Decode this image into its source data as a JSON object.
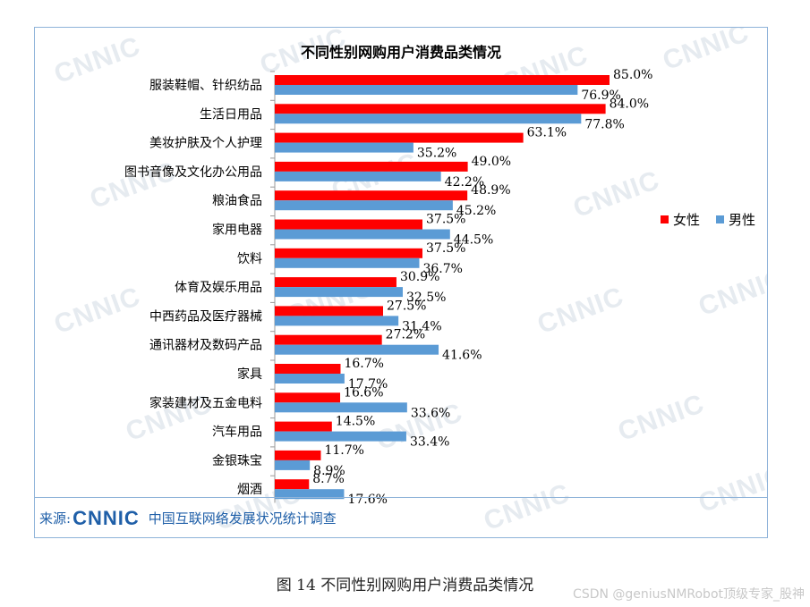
{
  "chart_data": {
    "type": "bar",
    "orientation": "horizontal",
    "title": "不同性别网购用户消费品类情况",
    "categories": [
      "服装鞋帽、针织纺品",
      "生活日用品",
      "美妆护肤及个人护理",
      "图书音像及文化办公用品",
      "粮油食品",
      "家用电器",
      "饮料",
      "体育及娱乐用品",
      "中西药品及医疗器械",
      "通讯器材及数码产品",
      "家具",
      "家装建材及五金电料",
      "汽车用品",
      "金银珠宝",
      "烟酒"
    ],
    "series": [
      {
        "name": "女性",
        "color": "#ff0000",
        "values": [
          85.0,
          84.0,
          63.1,
          49.0,
          48.9,
          37.5,
          37.5,
          30.9,
          27.5,
          27.2,
          16.7,
          16.6,
          14.5,
          11.7,
          8.7
        ],
        "labels": [
          "85.0%",
          "84.0%",
          "63.1%",
          "49.0%",
          "48.9%",
          "37.5%",
          "37.5%",
          "30.9%",
          "27.5%",
          "27.2%",
          "16.7%",
          "16.6%",
          "14.5%",
          "11.7%",
          "8.7%"
        ]
      },
      {
        "name": "男性",
        "color": "#5b9bd5",
        "values": [
          76.9,
          77.8,
          35.2,
          42.2,
          45.2,
          44.5,
          36.7,
          32.5,
          31.4,
          41.6,
          17.7,
          33.6,
          33.4,
          8.9,
          17.6
        ],
        "labels": [
          "76.9%",
          "77.8%",
          "35.2%",
          "42.2%",
          "45.2%",
          "44.5%",
          "36.7%",
          "32.5%",
          "31.4%",
          "41.6%",
          "17.7%",
          "33.6%",
          "33.4%",
          "8.9%",
          "17.6%"
        ]
      }
    ],
    "xlim": [
      0,
      100
    ],
    "grid": false,
    "legend": "right"
  },
  "watermark_text": "CNNIC",
  "source": {
    "label": "来源:",
    "logo": "CNNIC",
    "text": "中国互联网络发展状况统计调查"
  },
  "caption": "图 14  不同性别网购用户消费品类情况",
  "credit": "CSDN @geniusNMRobot顶级专家_股神"
}
